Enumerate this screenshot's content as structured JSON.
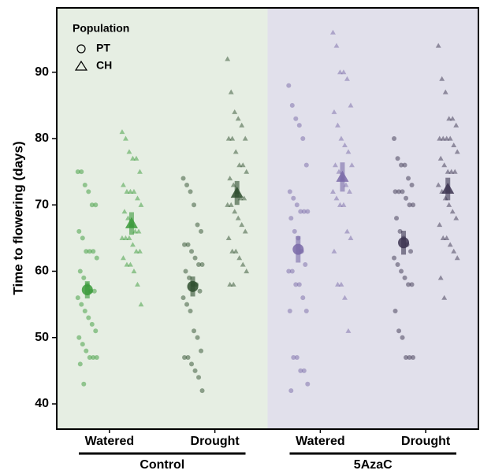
{
  "chart_data": {
    "type": "strip",
    "ylabel": "Time to flowering (days)",
    "legend": {
      "title": "Population",
      "position": "top-left"
    },
    "ylim": [
      36.2,
      99.7
    ],
    "yticks": [
      40,
      50,
      60,
      70,
      80,
      90
    ],
    "categories": [
      "Watered",
      "Drought",
      "Watered",
      "Drought"
    ],
    "category_colors": [
      "#3a9a3a",
      "#2e4e2e",
      "#7a6aa8",
      "#3b3350"
    ],
    "groups": [
      {
        "label": "Control",
        "background": "#e6eee3"
      },
      {
        "label": "5AzaC",
        "background": "#e1e0eb"
      }
    ],
    "series": [
      {
        "name": "PT",
        "marker": "circle",
        "points": [
          [
            75,
            75,
            73,
            72,
            70,
            70,
            66,
            65,
            63,
            63,
            63,
            62,
            60,
            59,
            58,
            57,
            57,
            56,
            55,
            54,
            53,
            52,
            51,
            50,
            49,
            48,
            47,
            47,
            47,
            46,
            43
          ],
          [
            74,
            73,
            72,
            70,
            67,
            66,
            64,
            64,
            63,
            62,
            61,
            61,
            60,
            59,
            58,
            58,
            57,
            56,
            55,
            54,
            51,
            50,
            48,
            47,
            47,
            46,
            45,
            44,
            42
          ],
          [
            88,
            85,
            83,
            82,
            80,
            76,
            72,
            71,
            70,
            69,
            69,
            69,
            68,
            66,
            65,
            63,
            61,
            60,
            60,
            58,
            58,
            56,
            54,
            54,
            47,
            47,
            45,
            45,
            43,
            42
          ],
          [
            80,
            77,
            76,
            76,
            74,
            73,
            72,
            72,
            72,
            71,
            70,
            70,
            68,
            66,
            65,
            64,
            63,
            62,
            61,
            60,
            59,
            58,
            58,
            54,
            51,
            50,
            47,
            47,
            47
          ]
        ],
        "means": [
          57.2,
          57.7,
          63.3,
          64.3
        ],
        "errors": [
          1.3,
          1.5,
          2.0,
          1.8
        ]
      },
      {
        "name": "CH",
        "marker": "triangle",
        "points": [
          [
            81,
            80,
            78,
            77,
            77,
            75,
            73,
            72,
            72,
            72,
            71,
            70,
            69,
            68,
            67,
            66,
            66,
            65,
            65,
            65,
            64,
            63,
            63,
            62,
            61,
            61,
            60,
            58,
            55
          ],
          [
            92,
            87,
            84,
            83,
            82,
            80,
            80,
            80,
            78,
            76,
            76,
            75,
            74,
            73,
            72,
            71,
            71,
            70,
            70,
            69,
            68,
            67,
            66,
            65,
            63,
            63,
            62,
            61,
            60,
            58,
            58
          ],
          [
            96,
            94,
            90,
            90,
            89,
            85,
            84,
            82,
            80,
            79,
            78,
            76,
            76,
            75,
            74,
            73,
            72,
            72,
            71,
            70,
            70,
            66,
            65,
            63,
            58,
            58,
            56,
            51
          ],
          [
            94,
            89,
            87,
            83,
            83,
            82,
            80,
            80,
            80,
            80,
            79,
            78,
            77,
            76,
            75,
            75,
            75,
            73,
            72,
            71,
            70,
            69,
            68,
            67,
            65,
            65,
            64,
            63,
            62,
            59,
            56
          ]
        ],
        "means": [
          67.2,
          71.8,
          74.2,
          72.4
        ],
        "errors": [
          1.7,
          1.8,
          2.2,
          1.7
        ]
      }
    ]
  }
}
